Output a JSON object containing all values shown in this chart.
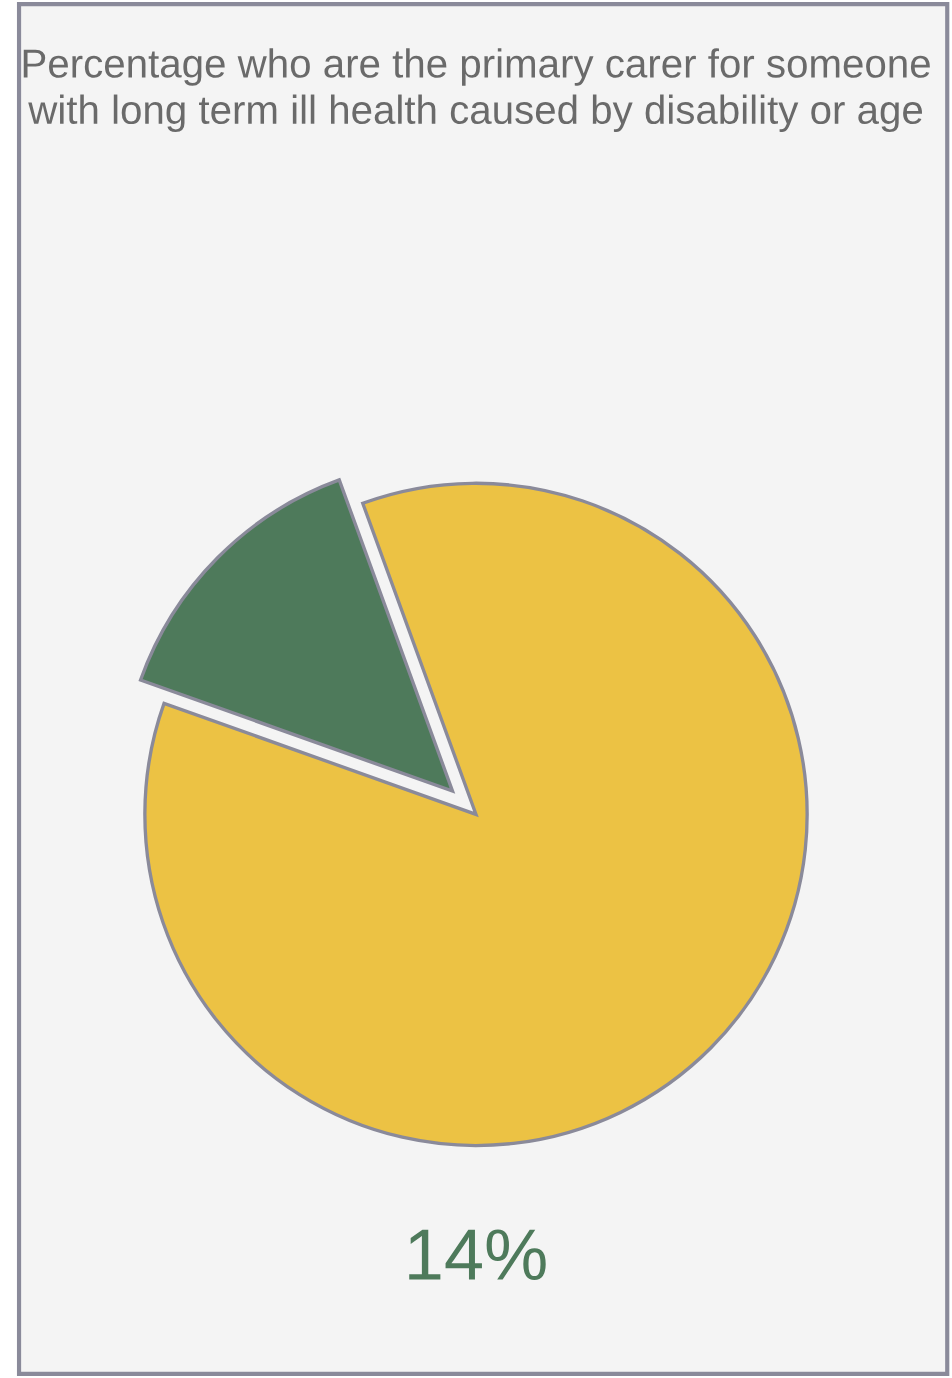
{
  "chart_data": {
    "type": "pie",
    "title": "Percentage who are the primary carer for someone with long term ill health caused by disability or age",
    "categories": [
      null,
      null
    ],
    "values": [
      14,
      86
    ],
    "colors": [
      "#4e7a5b",
      "#ecc244"
    ],
    "annotations": [
      "14%"
    ]
  }
}
